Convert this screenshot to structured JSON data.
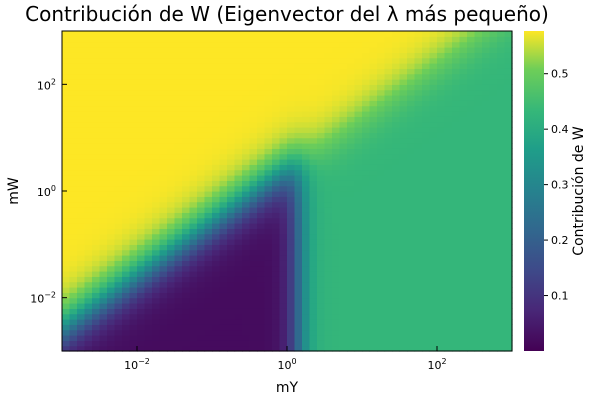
{
  "chart_data": {
    "type": "heatmap",
    "title": "Contribución de W (Eigenvector del λ más pequeño)",
    "xlabel": "mY",
    "ylabel": "mW",
    "xscale": "log",
    "yscale": "log",
    "xlim": [
      0.001,
      1000
    ],
    "ylim": [
      0.001,
      1000
    ],
    "x_ticks": [
      {
        "base": "10",
        "exp": "−2",
        "value": 0.01
      },
      {
        "base": "10",
        "exp": "0",
        "value": 1
      },
      {
        "base": "10",
        "exp": "2",
        "value": 100
      }
    ],
    "y_ticks": [
      {
        "base": "10",
        "exp": "−2",
        "value": 0.01
      },
      {
        "base": "10",
        "exp": "0",
        "value": 1
      },
      {
        "base": "10",
        "exp": "2",
        "value": 100
      }
    ],
    "colorbar": {
      "label": "Contribución de W",
      "colormap": "viridis",
      "range": [
        0.0,
        0.577
      ],
      "ticks": [
        "0.1",
        "0.2",
        "0.3",
        "0.4",
        "0.5"
      ]
    },
    "grid": {
      "nx": 60,
      "ny": 60,
      "description": "values estimated from colors: ~0.577 where log10(mW) > log10(mY)+0.4 (upper-left), ~0.43 for mY > ~2 below the diagonal, ~0.0 in the lower-left region with mY < 1, transitions across boundaries"
    },
    "grid_lines": false,
    "legend": "colorbar-right"
  }
}
